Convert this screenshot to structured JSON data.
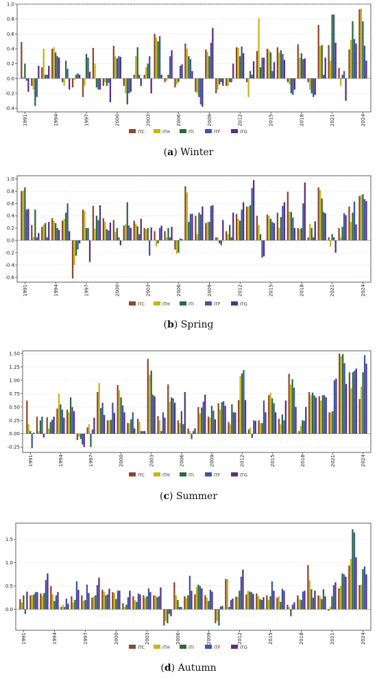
{
  "chart_data": [
    {
      "type": "bar",
      "caption_letter": "a",
      "caption_text": "Winter",
      "ylim": [
        -0.45,
        1.0
      ],
      "yticks": [
        -0.4,
        -0.2,
        0.0,
        0.2,
        0.4,
        0.6,
        0.8,
        1.0
      ],
      "xticks": [
        "1991",
        "1994",
        "1997",
        "2000",
        "2003",
        "2006",
        "2009",
        "2012",
        "2015",
        "2018",
        "2021",
        "2024"
      ],
      "categories": [
        "1991",
        "1992",
        "1993",
        "1994",
        "1995",
        "1996",
        "1997",
        "1998",
        "1999",
        "2000",
        "2001",
        "2002",
        "2003",
        "2004",
        "2005",
        "2006",
        "2007",
        "2008",
        "2009",
        "2010",
        "2011",
        "2012",
        "2013",
        "2014",
        "2015",
        "2016",
        "2017",
        "2018",
        "2019",
        "2020",
        "2021",
        "2022",
        "2023",
        "2024"
      ],
      "series": [
        {
          "name": "ITC",
          "values": [
            0.49,
            -0.1,
            0.15,
            0.4,
            -0.05,
            -0.12,
            -0.25,
            0.41,
            -0.1,
            0.44,
            -0.1,
            0.05,
            0.05,
            0.6,
            -0.05,
            -0.12,
            0.47,
            -0.18,
            0.39,
            -0.2,
            -0.1,
            0.42,
            -0.05,
            0.37,
            0.4,
            0.42,
            -0.05,
            0.46,
            -0.05,
            0.72,
            0.45,
            0.14,
            0.39,
            0.93
          ]
        },
        {
          "name": "ITH",
          "values": [
            0.02,
            -0.15,
            0.4,
            0.42,
            -0.1,
            -0.02,
            -0.1,
            0.2,
            -0.05,
            0.3,
            -0.2,
            0.3,
            0.15,
            0.55,
            -0.03,
            -0.08,
            0.4,
            -0.2,
            0.36,
            -0.15,
            -0.1,
            0.41,
            -0.25,
            0.81,
            0.38,
            0.35,
            -0.08,
            0.28,
            -0.15,
            0.44,
            0.24,
            -0.1,
            0.52,
            0.94
          ]
        },
        {
          "name": "ITI",
          "values": [
            0.2,
            -0.37,
            0.05,
            0.35,
            0.24,
            0.05,
            0.33,
            -0.12,
            -0.1,
            0.27,
            -0.35,
            0.42,
            0.2,
            0.5,
            0.05,
            -0.05,
            0.3,
            -0.25,
            0.3,
            -0.08,
            -0.05,
            0.3,
            0.1,
            0.15,
            0.35,
            0.38,
            -0.2,
            0.34,
            -0.2,
            0.45,
            0.86,
            0.05,
            0.77,
            0.77
          ]
        },
        {
          "name": "ITF",
          "values": [
            -0.03,
            -0.25,
            0.05,
            0.3,
            0.13,
            0.07,
            0.28,
            -0.15,
            -0.06,
            0.3,
            -0.2,
            0.05,
            0.3,
            0.57,
            0.3,
            0.17,
            0.26,
            -0.35,
            0.48,
            -0.05,
            -0.05,
            0.43,
            0.05,
            0.28,
            0.1,
            0.33,
            -0.22,
            0.26,
            -0.25,
            0.05,
            0.86,
            0.1,
            0.53,
            0.44
          ]
        },
        {
          "name": "ITG",
          "values": [
            -0.18,
            0.17,
            0.17,
            0.28,
            -0.15,
            0.05,
            0.09,
            -0.15,
            -0.32,
            0.29,
            -0.18,
            -0.1,
            -0.2,
            0.05,
            0.38,
            0.19,
            0.1,
            -0.38,
            0.68,
            -0.1,
            0.2,
            0.34,
            0.23,
            0.28,
            0.22,
            0.25,
            -0.15,
            0.27,
            -0.22,
            0.28,
            0.48,
            -0.3,
            0.47,
            0.24
          ]
        }
      ]
    },
    {
      "type": "bar",
      "caption_letter": "b",
      "caption_text": "Spring",
      "ylim": [
        -0.68,
        1.05
      ],
      "yticks": [
        -0.6,
        -0.4,
        -0.2,
        0.0,
        0.2,
        0.4,
        0.6,
        0.8,
        1.0
      ],
      "xticks": [
        "1991",
        "1994",
        "1997",
        "2000",
        "2003",
        "2006",
        "2009",
        "2012",
        "2015",
        "2018",
        "2021",
        "2024"
      ],
      "categories": [
        "1991",
        "1992",
        "1993",
        "1994",
        "1995",
        "1996",
        "1997",
        "1998",
        "1999",
        "2000",
        "2001",
        "2002",
        "2003",
        "2004",
        "2005",
        "2006",
        "2007",
        "2008",
        "2009",
        "2010",
        "2011",
        "2012",
        "2013",
        "2014",
        "2015",
        "2016",
        "2017",
        "2018",
        "2019",
        "2020",
        "2021",
        "2022",
        "2023",
        "2024"
      ],
      "series": [
        {
          "name": "ITC",
          "values": [
            0.8,
            0.25,
            0.22,
            0.36,
            0.32,
            -0.62,
            0.5,
            0.56,
            0.36,
            0.33,
            0.24,
            0.32,
            0.2,
            0.15,
            0.15,
            -0.15,
            0.88,
            0.4,
            0.28,
            0.05,
            0.15,
            0.43,
            0.55,
            0.4,
            0.42,
            0.45,
            0.79,
            0.2,
            0.05,
            0.86,
            0.05,
            0.2,
            0.55,
            0.72
          ]
        },
        {
          "name": "ITH",
          "values": [
            0.81,
            0.05,
            0.26,
            0.32,
            0.35,
            -0.4,
            0.48,
            0.19,
            0.3,
            0.14,
            0.26,
            0.27,
            0.18,
            -0.1,
            0.05,
            -0.22,
            0.78,
            0.1,
            0.3,
            0.05,
            0.1,
            0.35,
            0.55,
            0.25,
            0.4,
            0.2,
            0.47,
            0.18,
            0.27,
            0.82,
            -0.1,
            0.05,
            0.3,
            0.73
          ]
        },
        {
          "name": "ITI",
          "values": [
            0.86,
            0.5,
            0.28,
            0.28,
            0.45,
            -0.25,
            0.2,
            0.4,
            0.18,
            0.2,
            0.62,
            0.23,
            0.2,
            -0.05,
            0.2,
            -0.2,
            0.3,
            0.45,
            0.3,
            -0.05,
            0.25,
            0.32,
            0.57,
            0.1,
            0.35,
            0.38,
            0.46,
            0.2,
            0.2,
            0.68,
            0.1,
            0.22,
            0.45,
            0.75
          ]
        },
        {
          "name": "ITF",
          "values": [
            0.5,
            0.05,
            0.05,
            0.2,
            0.6,
            -0.15,
            0.2,
            0.33,
            0.16,
            0.05,
            0.24,
            0.1,
            -0.25,
            0.2,
            0.05,
            0.03,
            0.43,
            0.42,
            0.56,
            -0.08,
            0.05,
            0.5,
            0.85,
            -0.28,
            0.3,
            0.56,
            0.37,
            0.6,
            0.05,
            0.46,
            0.05,
            0.44,
            0.63,
            0.67
          ]
        },
        {
          "name": "ITG",
          "values": [
            0.51,
            0.12,
            0.3,
            0.17,
            0.15,
            -0.05,
            -0.35,
            0.57,
            0.29,
            -0.08,
            0.2,
            0.35,
            0.21,
            0.24,
            0.22,
            0.02,
            0.43,
            0.55,
            0.57,
            0.33,
            0.45,
            0.62,
            0.98,
            -0.26,
            0.28,
            0.62,
            0.2,
            0.94,
            0.31,
            0.44,
            -0.2,
            0.41,
            0.26,
            0.64
          ]
        }
      ]
    },
    {
      "type": "bar",
      "caption_letter": "c",
      "caption_text": "Summer",
      "ylim": [
        -0.35,
        1.55
      ],
      "yticks": [
        -0.25,
        0.0,
        0.25,
        0.5,
        0.75,
        1.0,
        1.25,
        1.5
      ],
      "xticks": [
        "1991",
        "1994",
        "1997",
        "2000",
        "2003",
        "2006",
        "2009",
        "2012",
        "2015",
        "2018",
        "2021",
        "2024"
      ],
      "categories": [
        "1991",
        "1992",
        "1993",
        "1994",
        "1995",
        "1996",
        "1997",
        "1998",
        "1999",
        "2000",
        "2001",
        "2002",
        "2003",
        "2004",
        "2005",
        "2006",
        "2007",
        "2008",
        "2009",
        "2010",
        "2011",
        "2012",
        "2013",
        "2014",
        "2015",
        "2016",
        "2017",
        "2018",
        "2019",
        "2020",
        "2021",
        "2022",
        "2023",
        "2024"
      ],
      "series": [
        {
          "name": "ITC",
          "values": [
            0.62,
            0.32,
            0.31,
            0.47,
            0.45,
            -0.12,
            0.12,
            0.78,
            0.25,
            0.91,
            0.2,
            0.28,
            1.4,
            0.33,
            0.92,
            0.25,
            0.1,
            0.5,
            0.32,
            0.57,
            0.22,
            0.63,
            0.08,
            0.25,
            0.72,
            0.28,
            1.12,
            0.05,
            0.78,
            0.7,
            0.4,
            1.5,
            1.15,
            0.65
          ]
        },
        {
          "name": "ITH",
          "values": [
            0.18,
            0.05,
            0.1,
            0.75,
            0.4,
            -0.05,
            0.18,
            0.95,
            0.25,
            0.81,
            0.2,
            0.22,
            1.1,
            0.25,
            0.6,
            0.2,
            0.05,
            0.38,
            0.3,
            0.45,
            0.18,
            1.08,
            0.12,
            0.2,
            0.77,
            0.18,
            0.92,
            0.15,
            0.72,
            0.62,
            0.4,
            1.45,
            0.85,
            0.88
          ]
        },
        {
          "name": "ITI",
          "values": [
            0.05,
            0.25,
            0.22,
            0.55,
            0.68,
            -0.1,
            -0.25,
            0.48,
            0.26,
            0.68,
            0.27,
            0.05,
            1.18,
            0.05,
            0.68,
            0.42,
            -0.1,
            0.49,
            0.52,
            0.59,
            0.55,
            1.13,
            -0.08,
            0.2,
            0.66,
            0.36,
            1.02,
            0.25,
            0.77,
            0.72,
            0.42,
            1.49,
            1.15,
            1.15
          ]
        },
        {
          "name": "ITF",
          "values": [
            -0.27,
            0.32,
            0.26,
            0.45,
            0.5,
            -0.2,
            0.08,
            0.58,
            0.58,
            0.53,
            0.4,
            0.05,
            0.73,
            0.4,
            0.66,
            0.18,
            0.05,
            0.6,
            0.43,
            0.61,
            0.4,
            1.19,
            0.25,
            0.62,
            0.57,
            0.25,
            0.86,
            0.24,
            0.72,
            0.72,
            1.0,
            1.32,
            1.18,
            1.47
          ]
        },
        {
          "name": "ITG",
          "values": [
            0.02,
            -0.07,
            0.32,
            0.3,
            0.42,
            -0.25,
            0.3,
            0.35,
            0.39,
            0.4,
            0.1,
            0.05,
            0.7,
            0.3,
            0.58,
            0.78,
            0.1,
            0.73,
            0.27,
            0.52,
            0.4,
            0.63,
            0.24,
            0.4,
            0.4,
            0.62,
            0.5,
            0.5,
            0.68,
            0.68,
            1.03,
            0.93,
            1.22,
            1.31
          ]
        }
      ]
    },
    {
      "type": "bar",
      "caption_letter": "d",
      "caption_text": "Autumn",
      "ylim": [
        -0.45,
        1.85
      ],
      "yticks": [
        0.0,
        0.5,
        1.0,
        1.5
      ],
      "xticks": [
        "1991",
        "1994",
        "1997",
        "2000",
        "2003",
        "2006",
        "2009",
        "2012",
        "2015",
        "2018",
        "2021",
        "2024"
      ],
      "categories": [
        "1991",
        "1992",
        "1993",
        "1994",
        "1995",
        "1996",
        "1997",
        "1998",
        "1999",
        "2000",
        "2001",
        "2002",
        "2003",
        "2004",
        "2005",
        "2006",
        "2007",
        "2008",
        "2009",
        "2010",
        "2011",
        "2012",
        "2013",
        "2014",
        "2015",
        "2016",
        "2017",
        "2018",
        "2019",
        "2020",
        "2021",
        "2022",
        "2023",
        "2024"
      ],
      "series": [
        {
          "name": "ITC",
          "values": [
            0.22,
            0.3,
            0.34,
            0.5,
            0.05,
            0.28,
            0.3,
            0.25,
            0.42,
            0.37,
            0.13,
            0.28,
            0.3,
            0.3,
            -0.35,
            0.58,
            0.28,
            0.32,
            0.3,
            -0.3,
            0.65,
            0.27,
            0.32,
            0.34,
            0.3,
            0.25,
            0.1,
            0.3,
            0.95,
            0.3,
            -0.03,
            0.45,
            0.94,
            0.52
          ]
        },
        {
          "name": "ITH",
          "values": [
            0.15,
            0.3,
            0.3,
            0.32,
            0.1,
            0.15,
            0.18,
            0.28,
            0.38,
            0.35,
            0.05,
            0.2,
            0.25,
            0.3,
            -0.25,
            0.3,
            0.25,
            0.48,
            0.25,
            -0.25,
            0.65,
            0.27,
            0.4,
            0.28,
            0.2,
            0.28,
            0.05,
            0.22,
            0.62,
            0.28,
            0.05,
            0.5,
            1.08,
            0.53
          ]
        },
        {
          "name": "ITI",
          "values": [
            0.3,
            0.32,
            0.35,
            0.18,
            0.05,
            0.2,
            0.2,
            0.3,
            0.3,
            0.22,
            0.1,
            0.16,
            0.28,
            0.26,
            -0.3,
            0.2,
            0.3,
            0.53,
            0.18,
            -0.35,
            0.05,
            0.4,
            0.38,
            0.22,
            0.28,
            0.16,
            -0.15,
            0.2,
            0.43,
            0.22,
            0.28,
            0.77,
            1.72,
            0.86
          ]
        },
        {
          "name": "ITF",
          "values": [
            -0.1,
            0.37,
            0.63,
            0.3,
            0.23,
            0.6,
            0.53,
            0.52,
            0.32,
            0.4,
            0.26,
            0.34,
            0.45,
            0.28,
            -0.1,
            0.05,
            0.72,
            0.5,
            0.42,
            0.06,
            0.2,
            0.7,
            0.37,
            0.2,
            0.6,
            0.44,
            0.1,
            0.38,
            0.25,
            0.43,
            0.52,
            0.75,
            1.65,
            0.92
          ]
        },
        {
          "name": "ITG",
          "values": [
            0.38,
            0.37,
            0.77,
            0.37,
            0.12,
            0.42,
            0.35,
            0.68,
            0.44,
            0.4,
            0.4,
            0.32,
            0.37,
            0.47,
            -0.15,
            0.05,
            0.4,
            0.45,
            0.38,
            0.07,
            0.23,
            0.85,
            0.33,
            0.26,
            0.4,
            0.4,
            0.15,
            0.4,
            0.4,
            0.28,
            0.58,
            0.7,
            1.12,
            0.75
          ]
        }
      ]
    }
  ],
  "colors": {
    "ITC": "#8b4a2c",
    "ITH": "#c8b41c",
    "ITI": "#2e6b3a",
    "ITF": "#3d55a8",
    "ITG": "#5a2f82"
  },
  "legend_labels": [
    "ITC",
    "ITH",
    "ITI",
    "ITF",
    "ITG"
  ]
}
